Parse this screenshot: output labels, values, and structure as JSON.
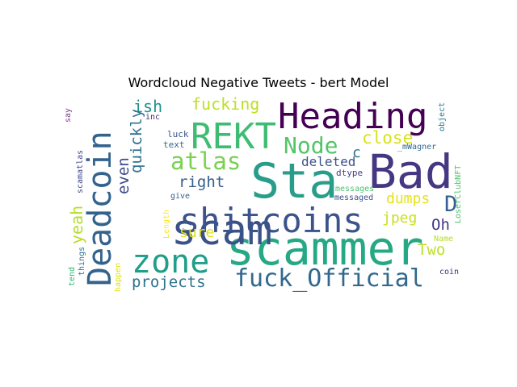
{
  "chart_data": {
    "type": "wordcloud",
    "title": "Wordcloud Negative Tweets - bert Model",
    "words": [
      {
        "text": "Sta",
        "color": "#2a9d8a"
      },
      {
        "text": "Bad",
        "color": "#453781"
      },
      {
        "text": "scammer",
        "color": "#26a884"
      },
      {
        "text": "Heading",
        "color": "#440154"
      },
      {
        "text": "scam",
        "color": "#3b5289"
      },
      {
        "text": "Deadcoin",
        "color": "#33638d"
      },
      {
        "text": "shitcoins",
        "color": "#3b528b"
      },
      {
        "text": "REKT",
        "color": "#3fbc73"
      },
      {
        "text": "zone",
        "color": "#1f9e89"
      },
      {
        "text": "fuck_Official",
        "color": "#31688e"
      },
      {
        "text": "atlas",
        "color": "#7ad151"
      },
      {
        "text": "Node",
        "color": "#52c569"
      },
      {
        "text": "fucking",
        "color": "#bddf26"
      },
      {
        "text": "right",
        "color": "#355f8d"
      },
      {
        "text": "projects",
        "color": "#2c728e"
      },
      {
        "text": "close",
        "color": "#d8e219"
      },
      {
        "text": "ish",
        "color": "#21918c"
      },
      {
        "text": "quickly",
        "color": "#2c728e"
      },
      {
        "text": "even",
        "color": "#3e4a89"
      },
      {
        "text": "yeah",
        "color": "#b5de2b"
      },
      {
        "text": "dumps",
        "color": "#e5e419"
      },
      {
        "text": "jpeg",
        "color": "#c8e020"
      },
      {
        "text": "sure",
        "color": "#dde318"
      },
      {
        "text": "deleted",
        "color": "#3b528b"
      },
      {
        "text": "Two",
        "color": "#bddf26"
      },
      {
        "text": "Oh",
        "color": "#443983"
      },
      {
        "text": "D",
        "color": "#35608d"
      },
      {
        "text": "c",
        "color": "#2c738e"
      },
      {
        "text": "dtype",
        "color": "#433e85"
      },
      {
        "text": "messages",
        "color": "#4ac16d"
      },
      {
        "text": "messaged",
        "color": "#3b528b"
      },
      {
        "text": "luck",
        "color": "#39568c"
      },
      {
        "text": "text",
        "color": "#31688e"
      },
      {
        "text": "give",
        "color": "#355f8d"
      },
      {
        "text": "inc",
        "color": "#482878"
      },
      {
        "text": "say",
        "color": "#7e3c8d"
      },
      {
        "text": "scamatlas",
        "color": "#404688"
      },
      {
        "text": "things",
        "color": "#2c728e"
      },
      {
        "text": "tend",
        "color": "#35b779"
      },
      {
        "text": "happen",
        "color": "#dde318"
      },
      {
        "text": "Length",
        "color": "#fde725"
      },
      {
        "text": "_mWagner",
        "color": "#31688e"
      },
      {
        "text": "LoserClubNFT",
        "color": "#4ac16d"
      },
      {
        "text": "object",
        "color": "#2a788e"
      },
      {
        "text": "Name",
        "color": "#b5de2b"
      },
      {
        "text": "coin",
        "color": "#482878"
      }
    ]
  }
}
